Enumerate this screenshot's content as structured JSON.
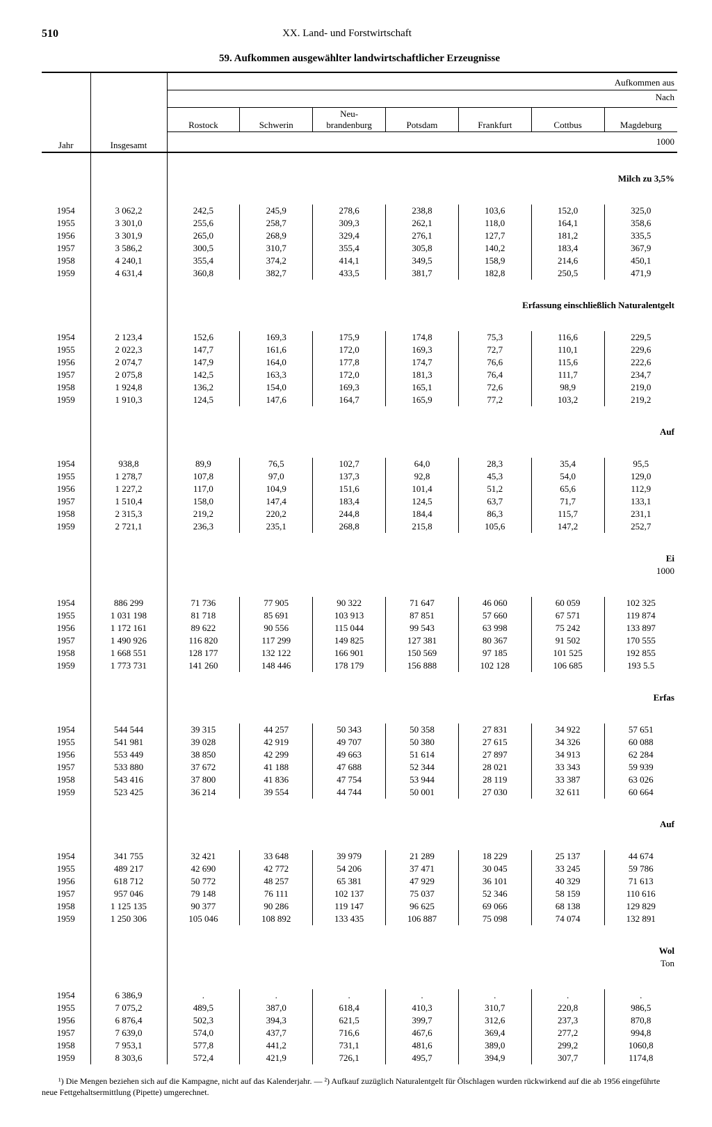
{
  "page_number": "510",
  "chapter": "XX. Land- und Forstwirtschaft",
  "title": "59. Aufkommen ausgewählter landwirtschaftlicher Erzeugnisse",
  "super_header_right": "Aufkommen aus",
  "sub_header_right": "Nach",
  "columns": {
    "year": "Jahr",
    "total": "Insgesamt",
    "regions": [
      "Rostock",
      "Schwerin",
      "Neu-\nbrandenburg",
      "Potsdam",
      "Frankfurt",
      "Cottbus",
      "Magdeburg"
    ]
  },
  "unit_1000": "1000",
  "sections": [
    {
      "label": "Milch zu 3,5%",
      "rows": [
        [
          "1954",
          "3 062,2",
          "242,5",
          "245,9",
          "278,6",
          "238,8",
          "103,6",
          "152,0",
          "325,0"
        ],
        [
          "1955",
          "3 301,0",
          "255,6",
          "258,7",
          "309,3",
          "262,1",
          "118,0",
          "164,1",
          "358,6"
        ],
        [
          "1956",
          "3 301,9",
          "265,0",
          "268,9",
          "329,4",
          "276,1",
          "127,7",
          "181,2",
          "335,5"
        ],
        [
          "1957",
          "3 586,2",
          "300,5",
          "310,7",
          "355,4",
          "305,8",
          "140,2",
          "183,4",
          "367,9"
        ],
        [
          "1958",
          "4 240,1",
          "355,4",
          "374,2",
          "414,1",
          "349,5",
          "158,9",
          "214,6",
          "450,1"
        ],
        [
          "1959",
          "4 631,4",
          "360,8",
          "382,7",
          "433,5",
          "381,7",
          "182,8",
          "250,5",
          "471,9"
        ]
      ]
    },
    {
      "label": "Erfassung einschließlich Naturalentgelt",
      "rows": [
        [
          "1954",
          "2 123,4",
          "152,6",
          "169,3",
          "175,9",
          "174,8",
          "75,3",
          "116,6",
          "229,5"
        ],
        [
          "1955",
          "2 022,3",
          "147,7",
          "161,6",
          "172,0",
          "169,3",
          "72,7",
          "110,1",
          "229,6"
        ],
        [
          "1956",
          "2 074,7",
          "147,9",
          "164,0",
          "177,8",
          "174,7",
          "76,6",
          "115,6",
          "222,6"
        ],
        [
          "1957",
          "2 075,8",
          "142,5",
          "163,3",
          "172,0",
          "181,3",
          "76,4",
          "111,7",
          "234,7"
        ],
        [
          "1958",
          "1 924,8",
          "136,2",
          "154,0",
          "169,3",
          "165,1",
          "72,6",
          "98,9",
          "219,0"
        ],
        [
          "1959",
          "1 910,3",
          "124,5",
          "147,6",
          "164,7",
          "165,9",
          "77,2",
          "103,2",
          "219,2"
        ]
      ]
    },
    {
      "label": "Auf",
      "rows": [
        [
          "1954",
          "938,8",
          "89,9",
          "76,5",
          "102,7",
          "64,0",
          "28,3",
          "35,4",
          "95,5"
        ],
        [
          "1955",
          "1 278,7",
          "107,8",
          "97,0",
          "137,3",
          "92,8",
          "45,3",
          "54,0",
          "129,0"
        ],
        [
          "1956",
          "1 227,2",
          "117,0",
          "104,9",
          "151,6",
          "101,4",
          "51,2",
          "65,6",
          "112,9"
        ],
        [
          "1957",
          "1 510,4",
          "158,0",
          "147,4",
          "183,4",
          "124,5",
          "63,7",
          "71,7",
          "133,1"
        ],
        [
          "1958",
          "2 315,3",
          "219,2",
          "220,2",
          "244,8",
          "184,4",
          "86,3",
          "115,7",
          "231,1"
        ],
        [
          "1959",
          "2 721,1",
          "236,3",
          "235,1",
          "268,8",
          "215,8",
          "105,6",
          "147,2",
          "252,7"
        ]
      ]
    },
    {
      "label": "Ei",
      "sub_label": "1000",
      "rows": [
        [
          "1954",
          "886 299",
          "71 736",
          "77 905",
          "90 322",
          "71 647",
          "46 060",
          "60 059",
          "102 325"
        ],
        [
          "1955",
          "1 031 198",
          "81 718",
          "85 691",
          "103 913",
          "87 851",
          "57 660",
          "67 571",
          "119 874"
        ],
        [
          "1956",
          "1 172 161",
          "89 622",
          "90 556",
          "115 044",
          "99 543",
          "63 998",
          "75 242",
          "133 897"
        ],
        [
          "1957",
          "1 490 926",
          "116 820",
          "117 299",
          "149 825",
          "127 381",
          "80 367",
          "91 502",
          "170 555"
        ],
        [
          "1958",
          "1 668 551",
          "128 177",
          "132 122",
          "166 901",
          "150 569",
          "97 185",
          "101 525",
          "192 855"
        ],
        [
          "1959",
          "1 773 731",
          "141 260",
          "148 446",
          "178 179",
          "156 888",
          "102 128",
          "106 685",
          "193 5.5"
        ]
      ]
    },
    {
      "label": "Erfas",
      "rows": [
        [
          "1954",
          "544 544",
          "39 315",
          "44 257",
          "50 343",
          "50 358",
          "27 831",
          "34 922",
          "57 651"
        ],
        [
          "1955",
          "541 981",
          "39 028",
          "42 919",
          "49 707",
          "50 380",
          "27 615",
          "34 326",
          "60 088"
        ],
        [
          "1956",
          "553 449",
          "38 850",
          "42 299",
          "49 663",
          "51 614",
          "27 897",
          "34 913",
          "62 284"
        ],
        [
          "1957",
          "533 880",
          "37 672",
          "41 188",
          "47 688",
          "52 344",
          "28 021",
          "33 343",
          "59 939"
        ],
        [
          "1958",
          "543 416",
          "37 800",
          "41 836",
          "47 754",
          "53 944",
          "28 119",
          "33 387",
          "63 026"
        ],
        [
          "1959",
          "523 425",
          "36 214",
          "39 554",
          "44 744",
          "50 001",
          "27 030",
          "32 611",
          "60 664"
        ]
      ]
    },
    {
      "label": "Auf",
      "rows": [
        [
          "1954",
          "341 755",
          "32 421",
          "33 648",
          "39 979",
          "21 289",
          "18 229",
          "25 137",
          "44 674"
        ],
        [
          "1955",
          "489 217",
          "42 690",
          "42 772",
          "54 206",
          "37 471",
          "30 045",
          "33 245",
          "59 786"
        ],
        [
          "1956",
          "618 712",
          "50 772",
          "48 257",
          "65 381",
          "47 929",
          "36 101",
          "40 329",
          "71 613"
        ],
        [
          "1957",
          "957 046",
          "79 148",
          "76 111",
          "102 137",
          "75 037",
          "52 346",
          "58 159",
          "110 616"
        ],
        [
          "1958",
          "1 125 135",
          "90 377",
          "90 286",
          "119 147",
          "96 625",
          "69 066",
          "68 138",
          "129 829"
        ],
        [
          "1959",
          "1 250 306",
          "105 046",
          "108 892",
          "133 435",
          "106 887",
          "75 098",
          "74 074",
          "132 891"
        ]
      ]
    },
    {
      "label": "Wol",
      "sub_label": "Ton",
      "rows": [
        [
          "1954",
          "6 386,9",
          ".",
          ".",
          ".",
          ".",
          ".",
          ".",
          "."
        ],
        [
          "1955",
          "7 075,2",
          "489,5",
          "387,0",
          "618,4",
          "410,3",
          "310,7",
          "220,8",
          "986,5"
        ],
        [
          "1956",
          "6 876,4",
          "502,3",
          "394,3",
          "621,5",
          "399,7",
          "312,6",
          "237,3",
          "870,8"
        ],
        [
          "1957",
          "7 639,0",
          "574,0",
          "437,7",
          "716,6",
          "467,6",
          "369,4",
          "277,2",
          "994,8"
        ],
        [
          "1958",
          "7 953,1",
          "577,8",
          "441,2",
          "731,1",
          "481,6",
          "389,0",
          "299,2",
          "1060,8"
        ],
        [
          "1959",
          "8 303,6",
          "572,4",
          "421,9",
          "726,1",
          "495,7",
          "394,9",
          "307,7",
          "1174,8"
        ]
      ]
    }
  ],
  "footnote": "¹) Die Mengen beziehen sich auf die Kampagne, nicht auf das Kalenderjahr. — ²) Aufkauf zuzüglich Naturalentgelt für Ölschlagen wurden rückwirkend auf die ab 1956 eingeführte neue Fettgehaltsermittlung (Pipette) umgerechnet."
}
